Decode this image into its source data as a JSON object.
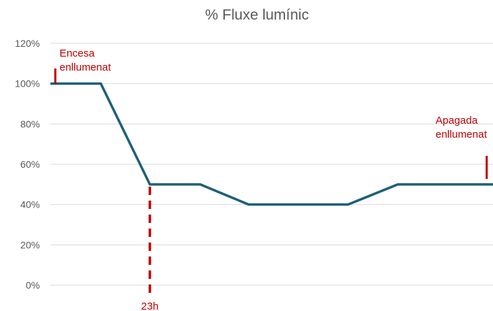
{
  "chart_data": {
    "type": "line",
    "title": "% Fluxe lumínic",
    "xlabel": "",
    "ylabel": "",
    "ylim": [
      0,
      120
    ],
    "y_ticks": [
      "0%",
      "20%",
      "40%",
      "60%",
      "80%",
      "100%",
      "120%"
    ],
    "grid": true,
    "series": [
      {
        "color": "#1f5f7a",
        "points": [
          [
            0,
            100
          ],
          [
            1,
            100
          ],
          [
            2,
            50
          ],
          [
            3,
            50
          ],
          [
            4,
            40
          ],
          [
            5,
            40
          ],
          [
            6,
            40
          ],
          [
            7,
            50
          ],
          [
            8,
            50
          ],
          [
            9,
            50
          ]
        ]
      }
    ],
    "annotations": {
      "start": [
        "Encesa",
        "enllumenat"
      ],
      "end": [
        "Apagada",
        "enllumenat"
      ],
      "marker": "23h"
    },
    "colors": {
      "line": "#1f5f7a",
      "annotation": "#c00000",
      "grid": "#d9d9d9",
      "text": "#595959"
    }
  }
}
